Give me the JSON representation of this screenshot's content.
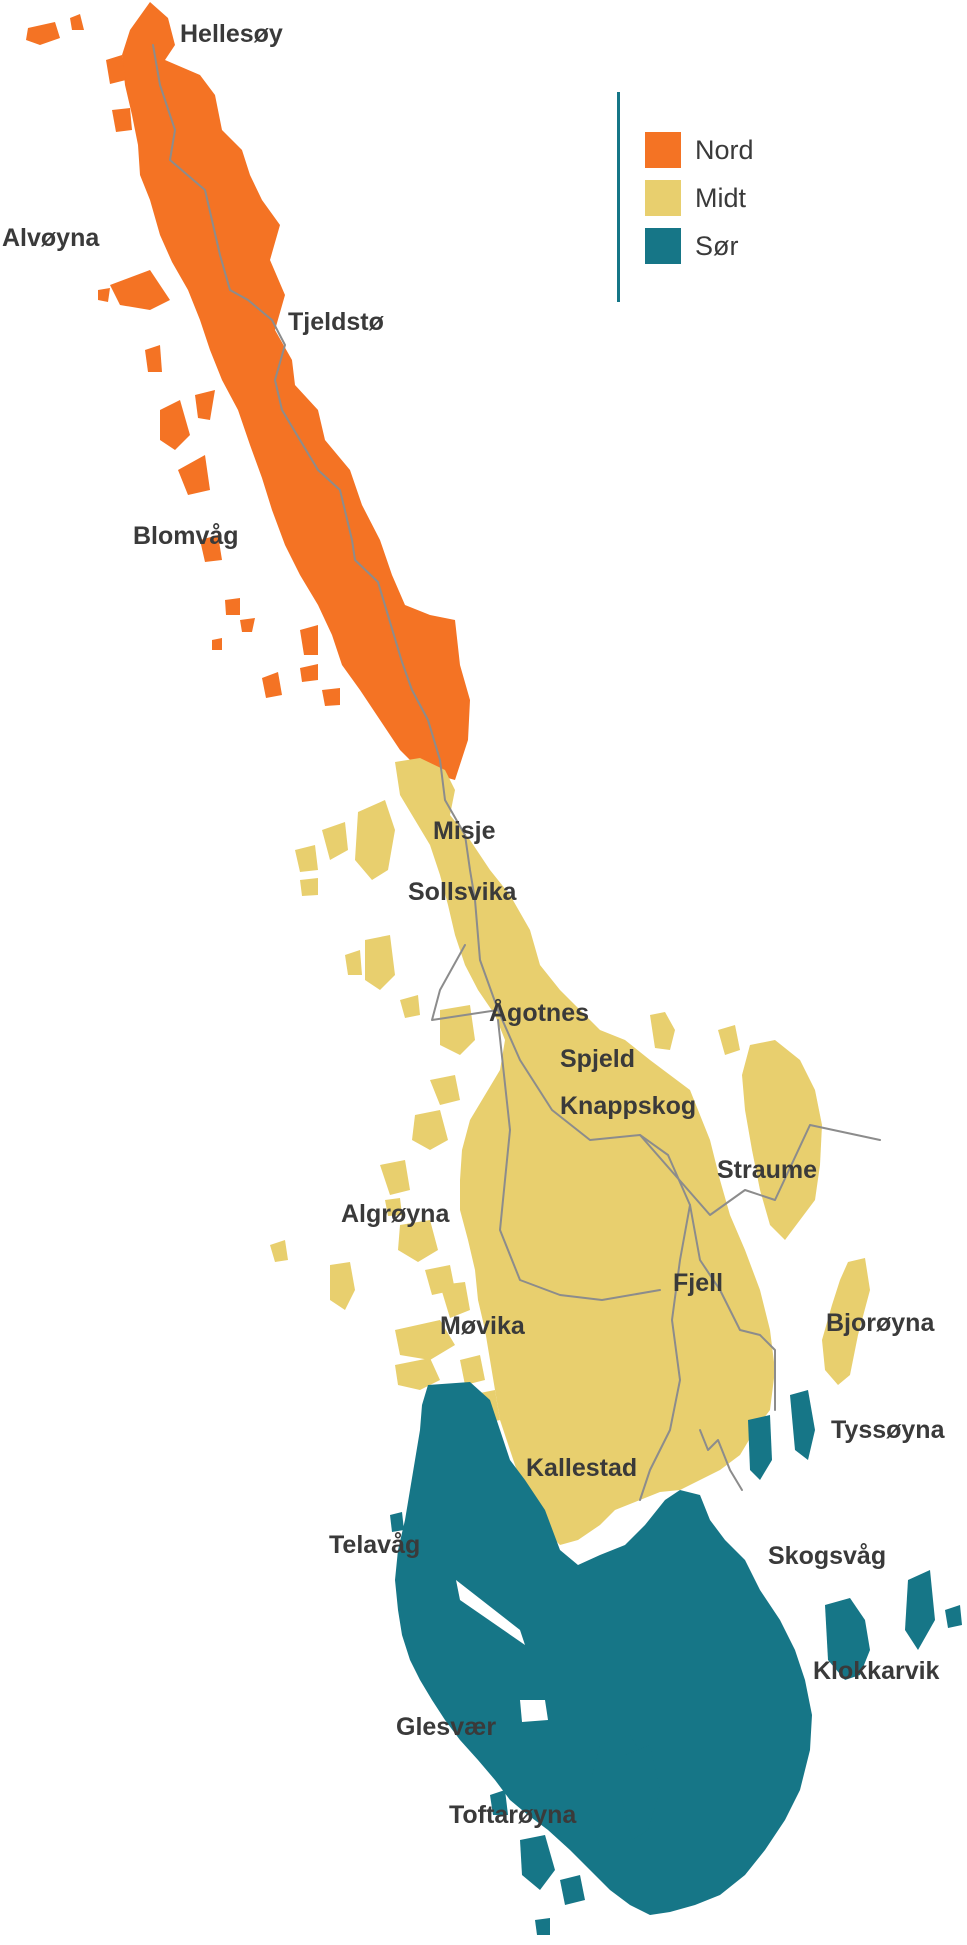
{
  "regions": [
    {
      "id": "nord",
      "name": "Nord",
      "color": "#F47324"
    },
    {
      "id": "midt",
      "name": "Midt",
      "color": "#E8CF6E"
    },
    {
      "id": "sor",
      "name": "Sør",
      "color": "#167687"
    }
  ],
  "road_color": "#8C8C8C",
  "legend_rule_color": "#157687",
  "places": [
    "Hellesøy",
    "Alvøyna",
    "Tjeldstø",
    "Blomvåg",
    "Misje",
    "Sollsvika",
    "Ågotnes",
    "Spjeld",
    "Knappskog",
    "Straume",
    "Algrøyna",
    "Fjell",
    "Møvika",
    "Bjorøyna",
    "Tyssøyna",
    "Kallestad",
    "Telavåg",
    "Skogsvåg",
    "Klokkarvik",
    "Glesvær",
    "Toftarøyna"
  ]
}
